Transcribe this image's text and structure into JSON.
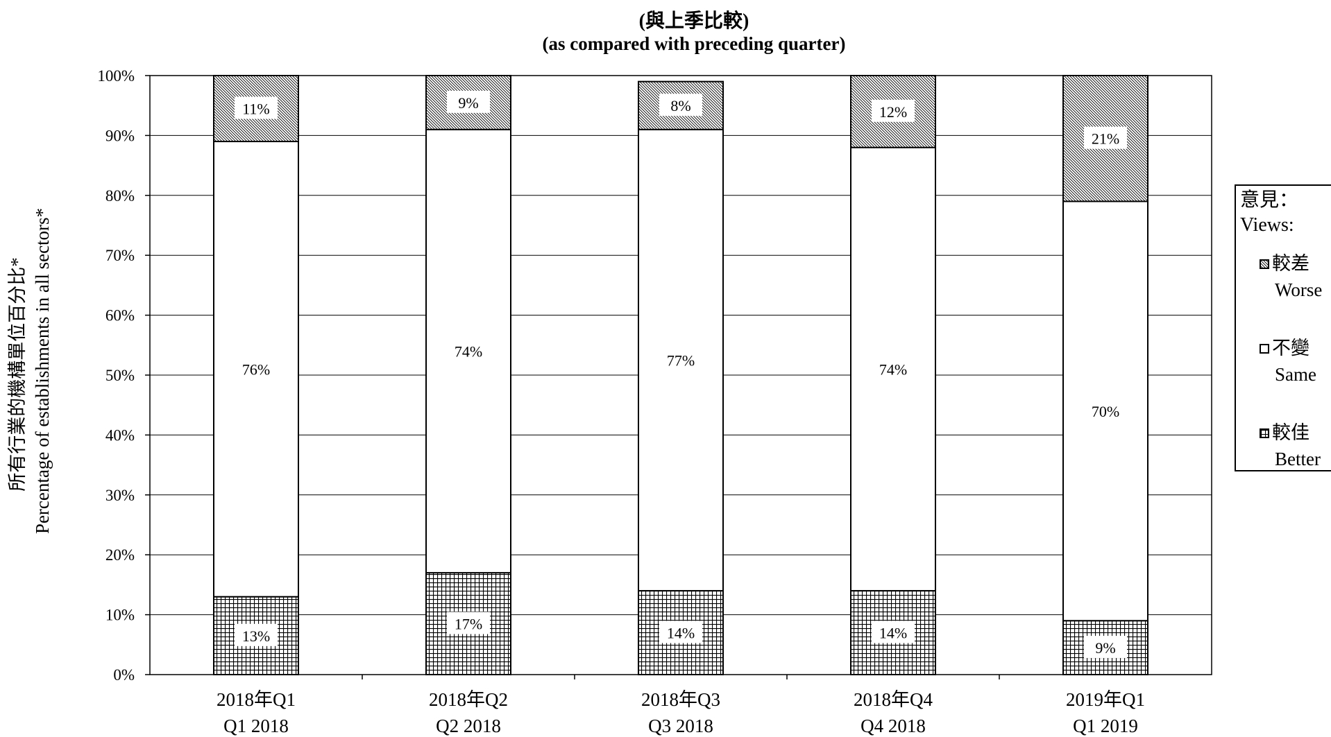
{
  "chart_data": {
    "type": "bar",
    "stacked": true,
    "title": "(與上季比較)",
    "subtitle": "(as compared with preceding quarter)",
    "ylabel_zh": "所有行業的機構單位百分比*",
    "ylabel_en": "Percentage of establishments in all sectors*",
    "ylim": [
      0,
      100
    ],
    "yticks": [
      "0%",
      "10%",
      "20%",
      "30%",
      "40%",
      "50%",
      "60%",
      "70%",
      "80%",
      "90%",
      "100%"
    ],
    "categories_zh": [
      "2018年Q1",
      "2018年Q2",
      "2018年Q3",
      "2018年Q4",
      "2019年Q1"
    ],
    "categories_en": [
      "Q1 2018",
      "Q2 2018",
      "Q3 2018",
      "Q4 2018",
      "Q1 2019"
    ],
    "series": [
      {
        "name_zh": "較佳",
        "name_en": "Better",
        "pattern": "grid",
        "values": [
          13,
          17,
          14,
          14,
          9
        ]
      },
      {
        "name_zh": "不變",
        "name_en": "Same",
        "pattern": "blank",
        "values": [
          76,
          74,
          77,
          74,
          70
        ]
      },
      {
        "name_zh": "較差",
        "name_en": "Worse",
        "pattern": "hatch",
        "values": [
          11,
          9,
          8,
          12,
          21
        ]
      }
    ],
    "grid": true,
    "legend_position": "right",
    "legend_title_zh": "意見：",
    "legend_title_en": "Views:"
  }
}
